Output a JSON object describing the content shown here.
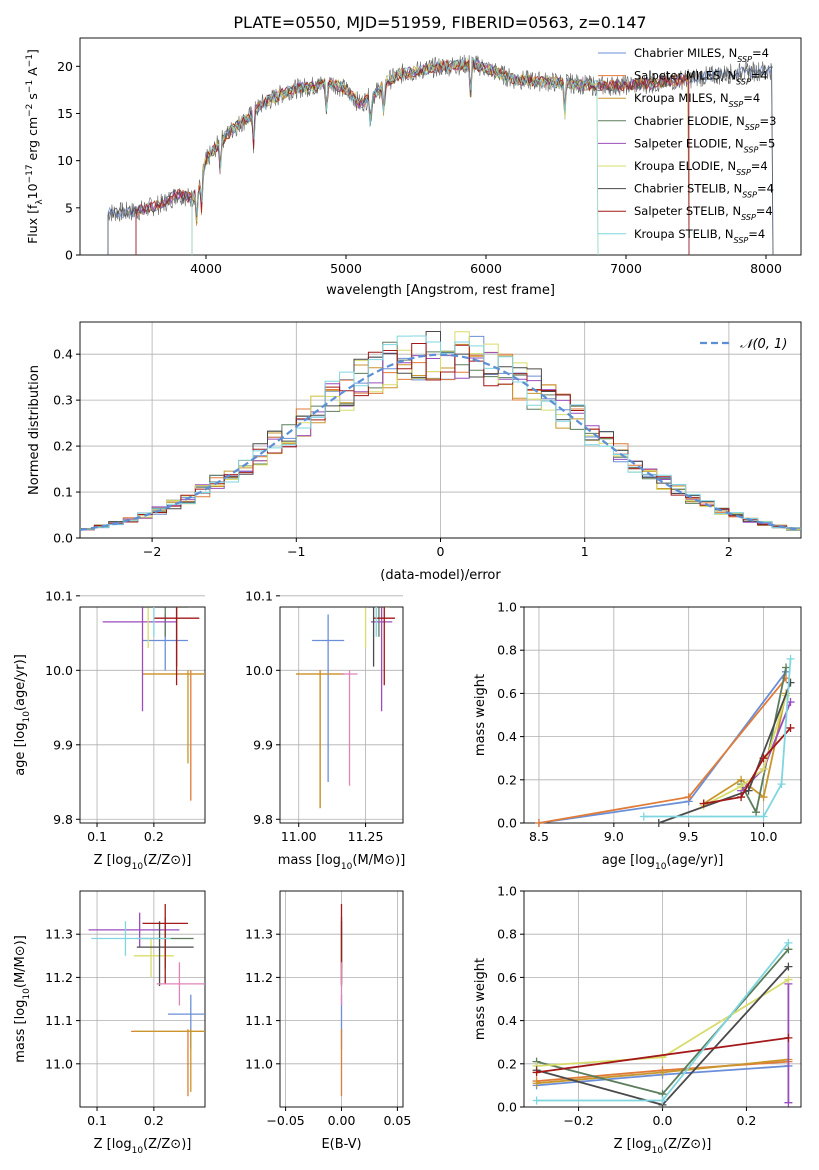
{
  "figure": {
    "title": "PLATE=0550, MJD=51959, FIBERID=0563, z=0.147"
  },
  "series_colors": [
    "#6a8fd8",
    "#e07b39",
    "#c8962a",
    "#5c7d5c",
    "#9b4dbd",
    "#d8dc6a",
    "#4a4a4a",
    "#a31818",
    "#7fd6e0"
  ],
  "chart_data": [
    {
      "id": "spectrum",
      "type": "line",
      "xlabel": "wavelength [Angstrom, rest frame]",
      "ylabel": "Flux [f_λ 10^-17 erg cm^-2 s^-1 A^-1]",
      "xlim": [
        3100,
        8250
      ],
      "ylim": [
        0,
        23
      ],
      "xticks": [
        4000,
        5000,
        6000,
        7000,
        8000
      ],
      "yticks": [
        0,
        5,
        10,
        15,
        20
      ],
      "grid": false,
      "legend_position": "right",
      "legend": [
        {
          "label": "Chabrier MILES, N",
          "sub": "SSP",
          "tail": "=4"
        },
        {
          "label": "Salpeter MILES, N",
          "sub": "SSP",
          "tail": "=4"
        },
        {
          "label": "Kroupa MILES, N",
          "sub": "SSP",
          "tail": "=4"
        },
        {
          "label": "Chabrier ELODIE, N",
          "sub": "SSP",
          "tail": "=3"
        },
        {
          "label": "Salpeter ELODIE, N",
          "sub": "SSP",
          "tail": "=5"
        },
        {
          "label": "Kroupa ELODIE, N",
          "sub": "SSP",
          "tail": "=4"
        },
        {
          "label": "Chabrier STELIB, N",
          "sub": "SSP",
          "tail": "=4"
        },
        {
          "label": "Salpeter STELIB, N",
          "sub": "SSP",
          "tail": "=4"
        },
        {
          "label": "Kroupa STELIB, N",
          "sub": "SSP",
          "tail": "=4"
        }
      ],
      "continuum": {
        "x": [
          3300,
          3500,
          3700,
          3800,
          3900,
          3950,
          4000,
          4100,
          4200,
          4300,
          4400,
          4600,
          4800,
          4900,
          5000,
          5100,
          5200,
          5300,
          5400,
          5500,
          5600,
          5700,
          5800,
          5900,
          6000,
          6100,
          6200,
          6400,
          6600,
          6800,
          7000,
          7200,
          7400,
          7600,
          7800,
          8000
        ],
        "y": [
          4.5,
          4.6,
          5.5,
          6.5,
          6.0,
          7.0,
          10.0,
          12.0,
          13.5,
          14.5,
          16.0,
          17.5,
          18.0,
          18.3,
          17.5,
          16.0,
          17.0,
          18.5,
          19.2,
          19.5,
          19.8,
          20.0,
          20.1,
          20.3,
          19.8,
          19.2,
          18.6,
          18.4,
          18.2,
          17.9,
          18.0,
          18.2,
          18.6,
          19.0,
          19.3,
          19.6
        ]
      },
      "model_segments": [
        {
          "series": 0,
          "x": [
            3300,
            8050
          ]
        },
        {
          "series": 1,
          "x": [
            3500,
            7450
          ]
        },
        {
          "series": 2,
          "x": [
            3900,
            7450
          ]
        },
        {
          "series": 3,
          "x": [
            3500,
            7450
          ]
        },
        {
          "series": 4,
          "x": [
            3500,
            7450
          ]
        },
        {
          "series": 5,
          "x": [
            3900,
            6800
          ]
        },
        {
          "series": 6,
          "x": [
            3300,
            8050
          ]
        },
        {
          "series": 7,
          "x": [
            3500,
            7450
          ]
        },
        {
          "series": 8,
          "x": [
            3900,
            6800
          ]
        }
      ]
    },
    {
      "id": "residuals",
      "type": "histogram",
      "xlabel": "(data-model)/error",
      "ylabel": "Normed distribution",
      "xlim": [
        -2.5,
        2.5
      ],
      "ylim": [
        0,
        0.47
      ],
      "xticks": [
        -2,
        -1,
        0,
        1,
        2
      ],
      "yticks": [
        0.0,
        0.1,
        0.2,
        0.3,
        0.4
      ],
      "grid": true,
      "legend_position": "top-right",
      "legend": [
        {
          "label": "𝒩(0, 1)"
        }
      ],
      "bin_width": 0.1,
      "reference_curve": "gaussian mean 0 sigma 1"
    },
    {
      "id": "age_vs_Z",
      "type": "errorbar",
      "xlabel": "Z [log10(Z/Z⊙)]",
      "ylabel": "age [log10(age/yr)]",
      "xlim": [
        0.07,
        0.29
      ],
      "ylim": [
        9.795,
        10.085
      ],
      "xticks": [
        0.1,
        0.2
      ],
      "yticks": [
        9.8,
        9.9,
        10.0,
        10.1
      ],
      "grid": true,
      "points": [
        {
          "series": 0,
          "x": 0.22,
          "xerr": [
            0.04,
            0.04
          ],
          "y": 10.04,
          "yerr": [
            0.04,
            0.035
          ]
        },
        {
          "series": 1,
          "x": 0.265,
          "xerr": [
            0.085,
            0.04
          ],
          "y": 9.995,
          "yerr": [
            0.17,
            0.005
          ]
        },
        {
          "series": 2,
          "x": 0.26,
          "xerr": [
            0.08,
            0.04
          ],
          "y": 9.995,
          "yerr": [
            0.12,
            0.005
          ]
        },
        {
          "series": 3,
          "x": 0.22,
          "xerr": [
            0.04,
            0.04
          ],
          "y": 10.085,
          "yerr": [
            0.04,
            0.04
          ]
        },
        {
          "series": 4,
          "x": 0.18,
          "xerr": [
            0.07,
            0.06
          ],
          "y": 10.065,
          "yerr": [
            0.12,
            0.04
          ]
        },
        {
          "series": 5,
          "x": 0.19,
          "xerr": [
            0.05,
            0.04
          ],
          "y": 10.09,
          "yerr": [
            0.06,
            0.05
          ]
        },
        {
          "series": 6,
          "x": 0.24,
          "xerr": [
            0.06,
            0.03
          ],
          "y": 10.085,
          "yerr": [
            0.08,
            0.04
          ]
        },
        {
          "series": 7,
          "x": 0.24,
          "xerr": [
            0.04,
            0.04
          ],
          "y": 10.07,
          "yerr": [
            0.09,
            0.05
          ]
        },
        {
          "series": 8,
          "x": 0.2,
          "xerr": [
            0.1,
            0.05
          ],
          "y": 10.105,
          "yerr": [
            0.06,
            0.02
          ]
        }
      ]
    },
    {
      "id": "age_vs_mass",
      "type": "errorbar",
      "xlabel": "mass [log10(M/M⊙)]",
      "ylabel": "",
      "xlim": [
        10.93,
        11.39
      ],
      "ylim": [
        9.795,
        10.085
      ],
      "xticks": [
        11.0,
        11.25
      ],
      "yticks": [
        9.8,
        9.9,
        10.0,
        10.1
      ],
      "grid": true,
      "points": [
        {
          "series": 0,
          "x": 11.11,
          "xerr": [
            0.06,
            0.06
          ],
          "y": 10.04,
          "yerr": [
            0.19,
            0.035
          ]
        },
        {
          "series": 1,
          "x": 11.08,
          "xerr": [
            0.09,
            0.09
          ],
          "y": 9.995,
          "yerr": [
            0.18,
            0.005
          ]
        },
        {
          "series": 2,
          "x": 11.08,
          "xerr": [
            0.09,
            0.09
          ],
          "y": 9.995,
          "yerr": [
            0.18,
            0.005
          ]
        },
        {
          "series": 3,
          "x": 11.3,
          "xerr": [
            0.04,
            0.04
          ],
          "y": 10.085,
          "yerr": [
            0.04,
            0.04
          ]
        },
        {
          "series": 4,
          "x": 11.31,
          "xerr": [
            0.04,
            0.04
          ],
          "y": 10.065,
          "yerr": [
            0.12,
            0.04
          ]
        },
        {
          "series": 5,
          "x": 11.25,
          "xerr": [
            0.04,
            0.04
          ],
          "y": 10.09,
          "yerr": [
            0.06,
            0.05
          ]
        },
        {
          "series": 6,
          "x": 11.28,
          "xerr": [
            0.04,
            0.04
          ],
          "y": 10.085,
          "yerr": [
            0.08,
            0.04
          ]
        },
        {
          "series": 7,
          "x": 11.32,
          "xerr": [
            0.04,
            0.04
          ],
          "y": 10.07,
          "yerr": [
            0.09,
            0.05
          ]
        },
        {
          "series": 8,
          "x": 11.29,
          "xerr": [
            0.04,
            0.04
          ],
          "y": 10.105,
          "yerr": [
            0.06,
            0.02
          ]
        },
        {
          "series": 9,
          "x": 11.19,
          "xerr": [
            0.03,
            0.03
          ],
          "y": 9.995,
          "yerr": [
            0.15,
            0.005
          ]
        }
      ]
    },
    {
      "id": "massweight_vs_age",
      "type": "line",
      "xlabel": "age [log10(age/yr)]",
      "ylabel": "mass weight",
      "xlim": [
        8.4,
        10.25
      ],
      "ylim": [
        0.0,
        1.0
      ],
      "xticks": [
        8.5,
        9.0,
        9.5,
        10.0
      ],
      "yticks": [
        0.0,
        0.2,
        0.4,
        0.6,
        0.8,
        1.0
      ],
      "grid": true,
      "series": [
        {
          "series": 0,
          "x": [
            8.5,
            9.5,
            10.15
          ],
          "y": [
            0.0,
            0.1,
            0.7
          ]
        },
        {
          "series": 1,
          "x": [
            8.5,
            9.5,
            10.15
          ],
          "y": [
            0.0,
            0.12,
            0.67
          ]
        },
        {
          "series": 2,
          "x": [
            9.6,
            9.85,
            10.0,
            10.15
          ],
          "y": [
            0.09,
            0.2,
            0.12,
            0.6
          ]
        },
        {
          "series": 3,
          "x": [
            9.85,
            9.95,
            10.15
          ],
          "y": [
            0.18,
            0.05,
            0.72
          ]
        },
        {
          "series": 4,
          "x": [
            9.85,
            10.0,
            10.18
          ],
          "y": [
            0.15,
            0.25,
            0.56
          ]
        },
        {
          "series": 5,
          "x": [
            9.6,
            9.85,
            10.0,
            10.15
          ],
          "y": [
            0.08,
            0.17,
            0.25,
            0.59
          ]
        },
        {
          "series": 6,
          "x": [
            9.3,
            9.9,
            10.18
          ],
          "y": [
            0.0,
            0.15,
            0.65
          ]
        },
        {
          "series": 7,
          "x": [
            9.6,
            9.85,
            10.0,
            10.18
          ],
          "y": [
            0.09,
            0.12,
            0.3,
            0.44
          ]
        },
        {
          "series": 8,
          "x": [
            9.2,
            10.0,
            10.12,
            10.18
          ],
          "y": [
            0.03,
            0.03,
            0.18,
            0.76
          ]
        }
      ]
    },
    {
      "id": "mass_vs_Z",
      "type": "errorbar",
      "xlabel": "Z [log10(Z/Z⊙)]",
      "ylabel": "mass [log10(M/M⊙)]",
      "xlim": [
        0.07,
        0.29
      ],
      "ylim": [
        10.9,
        11.4
      ],
      "xticks": [
        0.1,
        0.2
      ],
      "yticks": [
        11.0,
        11.1,
        11.2,
        11.3
      ],
      "grid": true,
      "points": [
        {
          "series": 0,
          "x": 0.265,
          "xerr": [
            0.04,
            0.04
          ],
          "y": 11.115,
          "yerr": [
            0.08,
            0.045
          ]
        },
        {
          "series": 1,
          "x": 0.26,
          "xerr": [
            0.1,
            0.04
          ],
          "y": 11.075,
          "yerr": [
            0.15,
            0.005
          ]
        },
        {
          "series": 2,
          "x": 0.265,
          "xerr": [
            0.1,
            0.04
          ],
          "y": 11.075,
          "yerr": [
            0.14,
            0.005
          ]
        },
        {
          "series": 3,
          "x": 0.22,
          "xerr": [
            0.05,
            0.05
          ],
          "y": 11.29,
          "yerr": [
            0.07,
            0.05
          ]
        },
        {
          "series": 4,
          "x": 0.175,
          "xerr": [
            0.09,
            0.07
          ],
          "y": 11.31,
          "yerr": [
            0.04,
            0.04
          ]
        },
        {
          "series": 5,
          "x": 0.195,
          "xerr": [
            0.03,
            0.04
          ],
          "y": 11.25,
          "yerr": [
            0.05,
            0.04
          ]
        },
        {
          "series": 6,
          "x": 0.21,
          "xerr": [
            0.04,
            0.06
          ],
          "y": 11.27,
          "yerr": [
            0.09,
            0.06
          ]
        },
        {
          "series": 7,
          "x": 0.22,
          "xerr": [
            0.04,
            0.04
          ],
          "y": 11.325,
          "yerr": [
            0.14,
            0.045
          ]
        },
        {
          "series": 8,
          "x": 0.15,
          "xerr": [
            0.06,
            0.08
          ],
          "y": 11.29,
          "yerr": [
            0.04,
            0.04
          ]
        },
        {
          "series": 9,
          "x": 0.245,
          "xerr": [
            0.04,
            0.06
          ],
          "y": 11.185,
          "yerr": [
            0.05,
            0.05
          ]
        }
      ]
    },
    {
      "id": "mass_vs_ebv",
      "type": "errorbar",
      "xlabel": "E(B-V)",
      "ylabel": "",
      "xlim": [
        -0.055,
        0.055
      ],
      "ylim": [
        10.9,
        11.4
      ],
      "xticks": [
        -0.05,
        0.0,
        0.05
      ],
      "yticks": [
        11.0,
        11.1,
        11.2,
        11.3
      ],
      "grid": true,
      "points": [
        {
          "series": 0,
          "x": 0.0,
          "xerr": [
            0,
            0
          ],
          "y": 11.115,
          "yerr": [
            0.08,
            0.045
          ]
        },
        {
          "series": 1,
          "x": 0.0,
          "xerr": [
            0,
            0
          ],
          "y": 11.075,
          "yerr": [
            0.15,
            0.005
          ]
        },
        {
          "series": 3,
          "x": 0.0,
          "xerr": [
            0,
            0
          ],
          "y": 11.29,
          "yerr": [
            0.07,
            0.05
          ]
        },
        {
          "series": 5,
          "x": 0.0,
          "xerr": [
            0,
            0
          ],
          "y": 11.25,
          "yerr": [
            0.05,
            0.04
          ]
        },
        {
          "series": 6,
          "x": 0.0,
          "xerr": [
            0,
            0
          ],
          "y": 11.27,
          "yerr": [
            0.09,
            0.06
          ]
        },
        {
          "series": 7,
          "x": 0.0,
          "xerr": [
            0,
            0
          ],
          "y": 11.325,
          "yerr": [
            0.14,
            0.045
          ]
        },
        {
          "series": 9,
          "x": 0.0,
          "xerr": [
            0,
            0
          ],
          "y": 11.185,
          "yerr": [
            0.05,
            0.05
          ]
        }
      ]
    },
    {
      "id": "massweight_vs_Z",
      "type": "line",
      "xlabel": "Z [log10(Z/Z⊙)]",
      "ylabel": "mass weight",
      "xlim": [
        -0.33,
        0.33
      ],
      "ylim": [
        0.0,
        1.0
      ],
      "xticks": [
        -0.2,
        0.0,
        0.2
      ],
      "yticks": [
        0.0,
        0.2,
        0.4,
        0.6,
        0.8,
        1.0
      ],
      "grid": true,
      "series": [
        {
          "series": 0,
          "x": [
            -0.3,
            0.0,
            0.3
          ],
          "y": [
            0.1,
            0.15,
            0.19
          ]
        },
        {
          "series": 1,
          "x": [
            -0.3,
            0.0,
            0.3
          ],
          "y": [
            0.12,
            0.17,
            0.21
          ]
        },
        {
          "series": 2,
          "x": [
            -0.3,
            0.0,
            0.3
          ],
          "y": [
            0.11,
            0.16,
            0.22
          ]
        },
        {
          "series": 3,
          "x": [
            -0.3,
            0.0,
            0.3
          ],
          "y": [
            0.21,
            0.06,
            0.73
          ]
        },
        {
          "series": 4,
          "x": [
            0.3,
            0.3
          ],
          "y": [
            0.02,
            0.57
          ]
        },
        {
          "series": 5,
          "x": [
            -0.3,
            0.0,
            0.3
          ],
          "y": [
            0.19,
            0.23,
            0.59
          ]
        },
        {
          "series": 6,
          "x": [
            -0.3,
            0.0,
            0.3
          ],
          "y": [
            0.17,
            0.01,
            0.65
          ]
        },
        {
          "series": 7,
          "x": [
            -0.3,
            0.3
          ],
          "y": [
            0.16,
            0.32
          ]
        },
        {
          "series": 8,
          "x": [
            -0.3,
            0.0,
            0.3
          ],
          "y": [
            0.03,
            0.03,
            0.76
          ]
        }
      ]
    }
  ]
}
